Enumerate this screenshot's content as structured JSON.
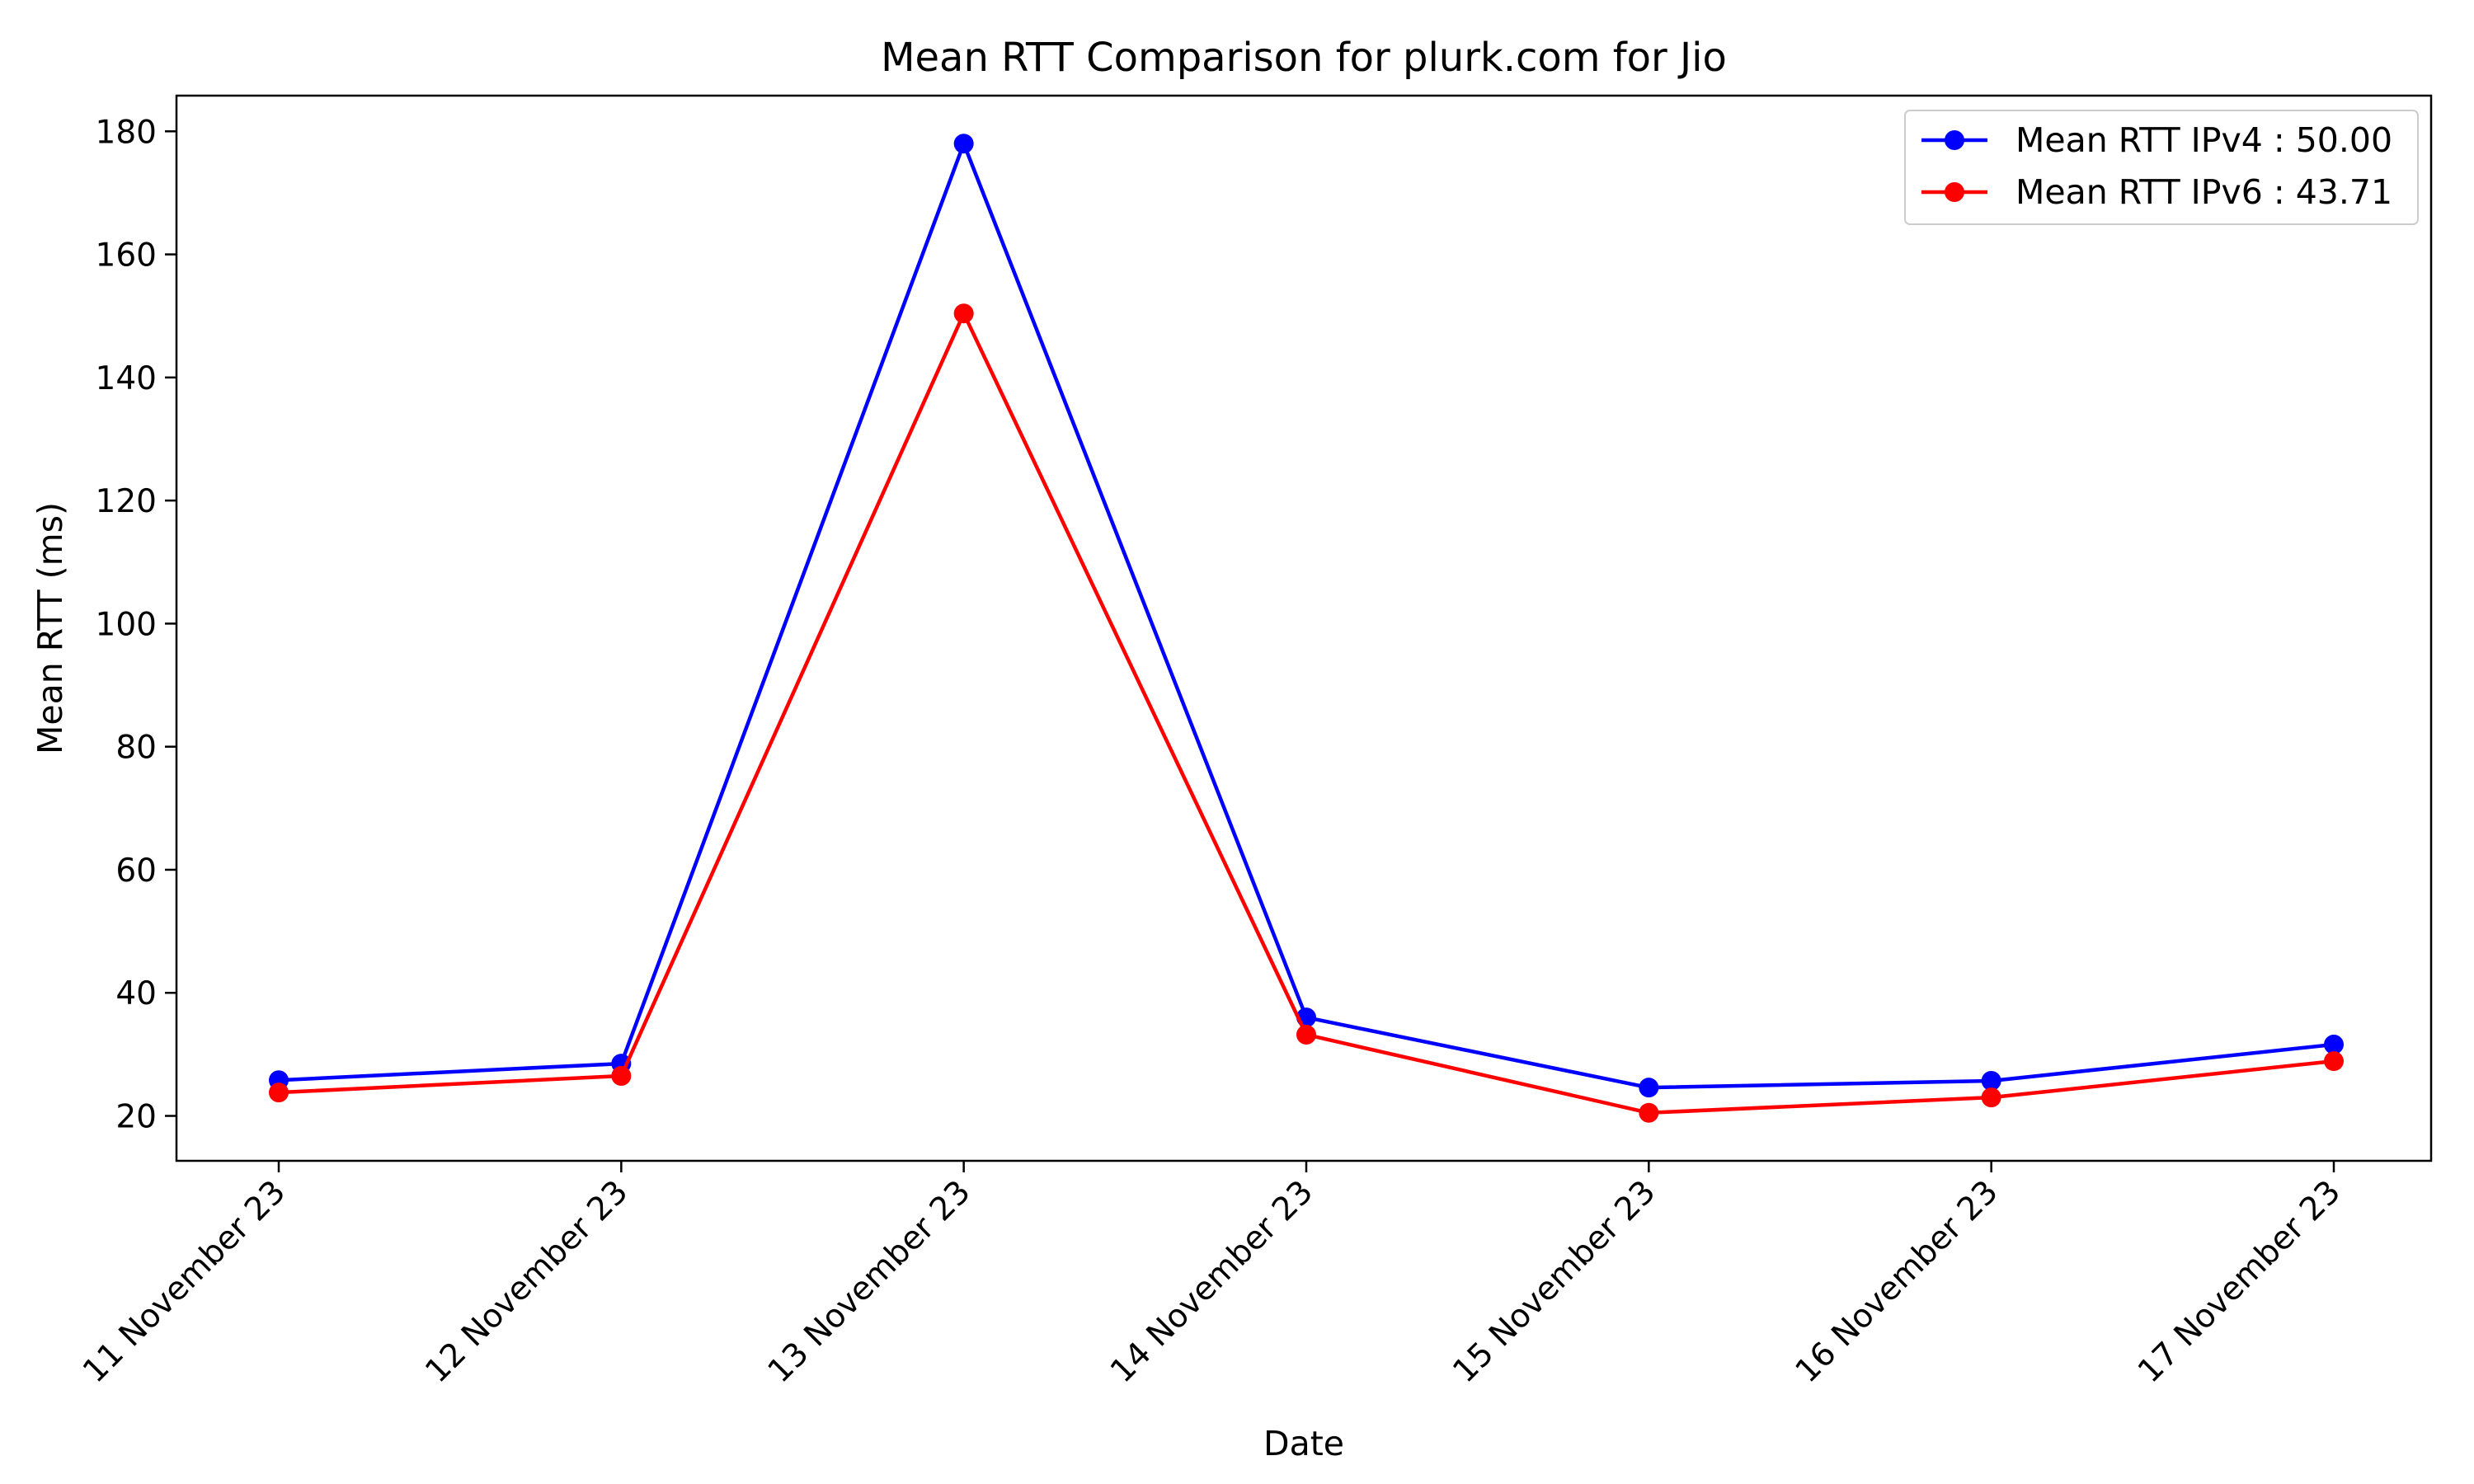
{
  "chart_data": {
    "type": "line",
    "title": "Mean RTT Comparison for plurk.com for Jio",
    "xlabel": "Date",
    "ylabel": "Mean RTT (ms)",
    "categories": [
      "11 November 23",
      "12 November 23",
      "13 November 23",
      "14 November 23",
      "15 November 23",
      "16 November 23",
      "17 November 23"
    ],
    "y_ticks": [
      20,
      40,
      60,
      80,
      100,
      120,
      140,
      160,
      180
    ],
    "ylim": [
      12.7,
      185.8
    ],
    "grid": false,
    "legend_position": "top-right",
    "series": [
      {
        "name": "Mean RTT IPv4 : 50.00",
        "color": "#0000ff",
        "values": [
          25.8,
          28.5,
          178.0,
          36.0,
          24.6,
          25.7,
          31.6
        ]
      },
      {
        "name": "Mean RTT IPv6 : 43.71",
        "color": "#ff0000",
        "values": [
          23.8,
          26.5,
          150.4,
          33.2,
          20.5,
          23.0,
          28.9
        ]
      }
    ]
  }
}
